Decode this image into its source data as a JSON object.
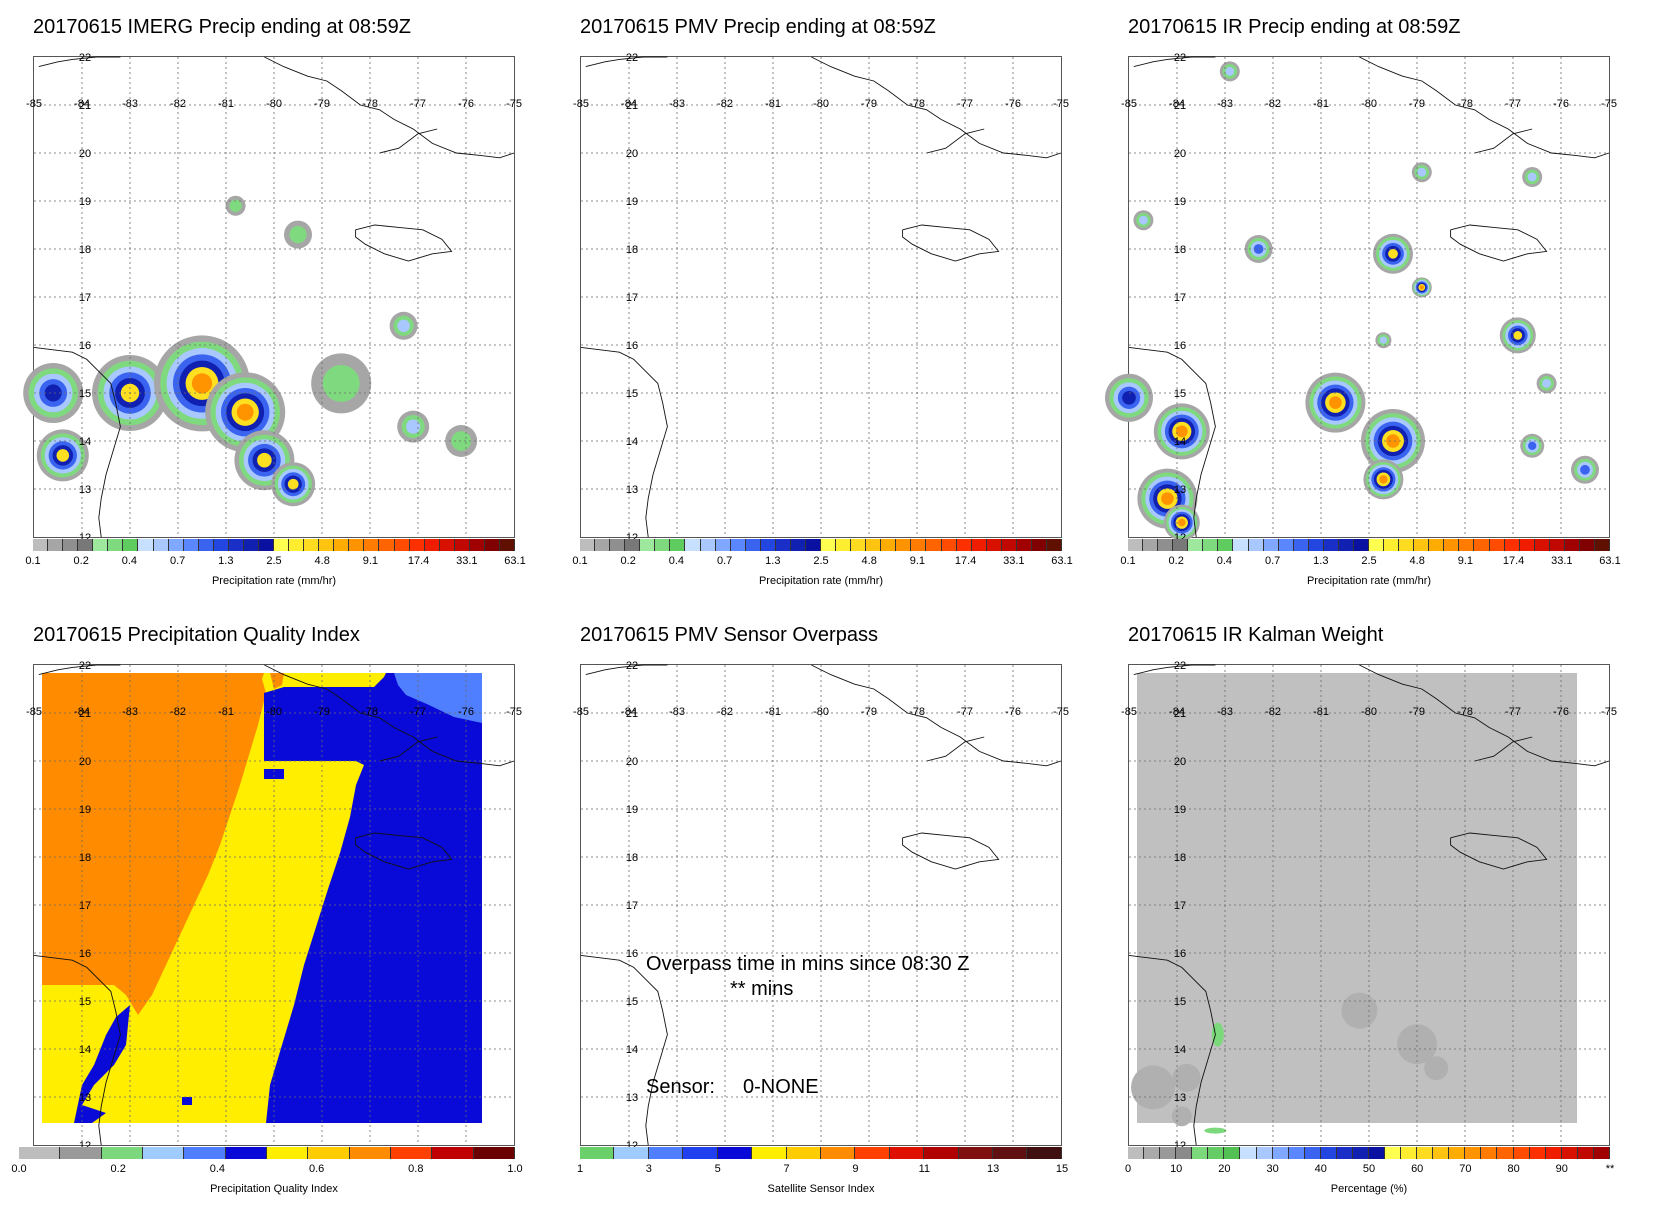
{
  "panels": [
    {
      "title": "20170615 IMERG Precip ending at 08:59Z",
      "colorbar": {
        "unit": "Precipitation rate (mm/hr)",
        "ticks": [
          "0.1",
          "0.2",
          "0.4",
          "0.7",
          "1.3",
          "2.5",
          "4.8",
          "9.1",
          "17.4",
          "33.1",
          "63.1"
        ],
        "colors": [
          "#bdbdbd",
          "#a6a6a6",
          "#8f8f8f",
          "#787878",
          "#9ee89e",
          "#7fda7f",
          "#5fcc5f",
          "#c8e0ff",
          "#a8c8ff",
          "#80a8ff",
          "#5a86ff",
          "#3a64f0",
          "#2345e0",
          "#1a2ec8",
          "#1020b0",
          "#0a10a0",
          "#ffff50",
          "#ffee30",
          "#ffdc20",
          "#ffc410",
          "#ffac00",
          "#ff9400",
          "#ff7c00",
          "#ff6400",
          "#ff4c00",
          "#ff3000",
          "#f01c00",
          "#d81000",
          "#c00800",
          "#a00000",
          "#800000",
          "#601000"
        ]
      },
      "map": {
        "type": "precip"
      }
    },
    {
      "title": "20170615 PMV Precip ending at 08:59Z",
      "colorbar": {
        "unit": "Precipitation rate (mm/hr)",
        "ticks": [
          "0.1",
          "0.2",
          "0.4",
          "0.7",
          "1.3",
          "2.5",
          "4.8",
          "9.1",
          "17.4",
          "33.1",
          "63.1"
        ],
        "colors": [
          "#bdbdbd",
          "#a6a6a6",
          "#8f8f8f",
          "#787878",
          "#9ee89e",
          "#7fda7f",
          "#5fcc5f",
          "#c8e0ff",
          "#a8c8ff",
          "#80a8ff",
          "#5a86ff",
          "#3a64f0",
          "#2345e0",
          "#1a2ec8",
          "#1020b0",
          "#0a10a0",
          "#ffff50",
          "#ffee30",
          "#ffdc20",
          "#ffc410",
          "#ffac00",
          "#ff9400",
          "#ff7c00",
          "#ff6400",
          "#ff4c00",
          "#ff3000",
          "#f01c00",
          "#d81000",
          "#c00800",
          "#a00000",
          "#800000",
          "#601000"
        ]
      },
      "map": {
        "type": "empty"
      }
    },
    {
      "title": "20170615 IR Precip ending at 08:59Z",
      "colorbar": {
        "unit": "Precipitation rate (mm/hr)",
        "ticks": [
          "0.1",
          "0.2",
          "0.4",
          "0.7",
          "1.3",
          "2.5",
          "4.8",
          "9.1",
          "17.4",
          "33.1",
          "63.1"
        ],
        "colors": [
          "#bdbdbd",
          "#a6a6a6",
          "#8f8f8f",
          "#787878",
          "#9ee89e",
          "#7fda7f",
          "#5fcc5f",
          "#c8e0ff",
          "#a8c8ff",
          "#80a8ff",
          "#5a86ff",
          "#3a64f0",
          "#2345e0",
          "#1a2ec8",
          "#1020b0",
          "#0a10a0",
          "#ffff50",
          "#ffee30",
          "#ffdc20",
          "#ffc410",
          "#ffac00",
          "#ff9400",
          "#ff7c00",
          "#ff6400",
          "#ff4c00",
          "#ff3000",
          "#f01c00",
          "#d81000",
          "#c00800",
          "#a00000",
          "#800000",
          "#601000"
        ]
      },
      "map": {
        "type": "precip_ir"
      }
    },
    {
      "title": "20170615 Precipitation Quality Index",
      "colorbar": {
        "unit": "Precipitation Quality Index",
        "ticks": [
          "0.0",
          "0.2",
          "0.4",
          "0.6",
          "0.8",
          "1.0"
        ],
        "colors": [
          "#bdbdbd",
          "#9a9a9a",
          "#7dd87d",
          "#9fcbff",
          "#4f7fff",
          "#0a0ad8",
          "#ffee00",
          "#ffcc00",
          "#ff8c00",
          "#ff4000",
          "#c00000",
          "#6a0000"
        ]
      },
      "map": {
        "type": "quality"
      }
    },
    {
      "title": "20170615 PMV Sensor Overpass",
      "colorbar": {
        "unit": "Satellite Sensor Index",
        "ticks": [
          "1",
          "3",
          "5",
          "7",
          "9",
          "11",
          "13",
          "15"
        ],
        "colors": [
          "#6ad06a",
          "#9fcbff",
          "#4f7fff",
          "#2040f0",
          "#0a0ad8",
          "#ffee00",
          "#ffcc00",
          "#ff8c00",
          "#ff4000",
          "#e01000",
          "#b00000",
          "#801010",
          "#601010",
          "#401010"
        ]
      },
      "map": {
        "type": "empty"
      },
      "overpass": {
        "line1": "Overpass time in mins since 08:30 Z",
        "line2": "** mins",
        "sensor_label": "Sensor:",
        "sensor_value": "0-NONE"
      }
    },
    {
      "title": "20170615 IR Kalman Weight",
      "colorbar": {
        "unit": "Percentage (%)",
        "ticks": [
          "0",
          "10",
          "20",
          "30",
          "40",
          "50",
          "60",
          "70",
          "80",
          "90",
          "**"
        ],
        "colors": [
          "#bdbdbd",
          "#aaaaaa",
          "#999999",
          "#8a8a8a",
          "#7bd87b",
          "#66cc66",
          "#52c052",
          "#c8e0ff",
          "#a8c8ff",
          "#80a8ff",
          "#5a86ff",
          "#3a64f0",
          "#2345e0",
          "#1a2ec8",
          "#1020b0",
          "#0a10a0",
          "#ffff50",
          "#ffee30",
          "#ffdc20",
          "#ffc410",
          "#ffac00",
          "#ff9400",
          "#ff7c00",
          "#ff6400",
          "#ff4c00",
          "#ff3000",
          "#f01c00",
          "#d81000",
          "#c00800",
          "#a00000"
        ]
      },
      "map": {
        "type": "kalman"
      }
    }
  ],
  "lon_labels": [
    "-85",
    "-84",
    "-83",
    "-82",
    "-81",
    "-80",
    "-79",
    "-78",
    "-77",
    "-76",
    "-75"
  ],
  "lat_labels": [
    "22",
    "21",
    "20",
    "19",
    "18",
    "17",
    "16",
    "15",
    "14",
    "13",
    "12"
  ]
}
